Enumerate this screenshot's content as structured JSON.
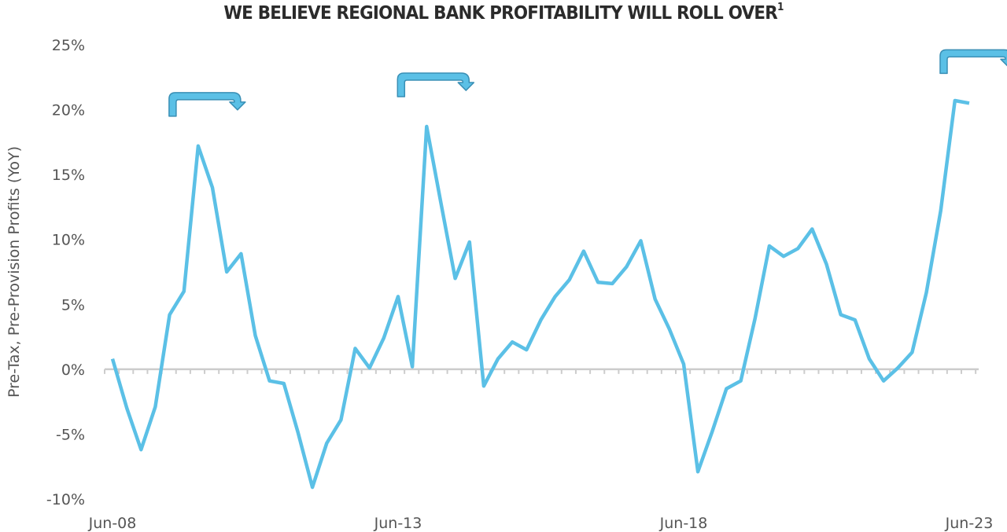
{
  "chart_data": {
    "type": "line",
    "title": "WE BELIEVE REGIONAL BANK PROFITABILITY WILL ROLL OVER",
    "title_footnote": "1",
    "xlabel": "",
    "ylabel": "Pre-Tax, Pre-Provision Profits (YoY)",
    "ylim": [
      -10,
      25
    ],
    "yticks": [
      25,
      20,
      15,
      10,
      5,
      0,
      -5,
      -10
    ],
    "ytick_labels": [
      "25%",
      "20%",
      "15%",
      "10%",
      "5%",
      "0%",
      "-5%",
      "-10%"
    ],
    "xtick_labels": [
      "Jun-08",
      "Jun-13",
      "Jun-18",
      "Jun-23"
    ],
    "xtick_positions": [
      0,
      20,
      40,
      60
    ],
    "x_frequency": "quarterly",
    "x_start": "Jun-08",
    "x_end": "Jun-23",
    "grid": false,
    "zero_line": true,
    "line_color": "#5bc0e6",
    "series": [
      {
        "name": "Pre-Tax, Pre-Provision Profits (YoY)",
        "values": [
          0.8,
          -3.0,
          -6.2,
          -2.9,
          4.2,
          6.0,
          17.2,
          14.0,
          7.5,
          8.9,
          2.6,
          -0.9,
          -1.1,
          -4.9,
          -9.1,
          -5.7,
          -3.9,
          1.6,
          0.1,
          2.4,
          5.6,
          0.2,
          18.7,
          12.8,
          7.0,
          9.8,
          -1.3,
          0.8,
          2.1,
          1.5,
          3.8,
          5.6,
          6.9,
          9.1,
          6.7,
          6.6,
          7.9,
          9.9,
          5.4,
          3.1,
          0.4,
          -7.9,
          -4.8,
          -1.5,
          -0.9,
          3.9,
          9.5,
          8.7,
          9.3,
          10.8,
          8.1,
          4.2,
          3.8,
          0.8,
          -0.9,
          0.1,
          1.3,
          5.9,
          12.2,
          20.7,
          20.5
        ]
      }
    ],
    "annotations": [
      {
        "type": "roll-over-arrow",
        "near_index": 6,
        "level": 19.5
      },
      {
        "type": "roll-over-arrow",
        "near_index": 22,
        "level": 21.0
      },
      {
        "type": "roll-over-arrow",
        "near_index": 60,
        "level": 22.8
      }
    ],
    "annotation_color": "#5bc0e6",
    "annotation_stroke": "#3a8fb5"
  }
}
